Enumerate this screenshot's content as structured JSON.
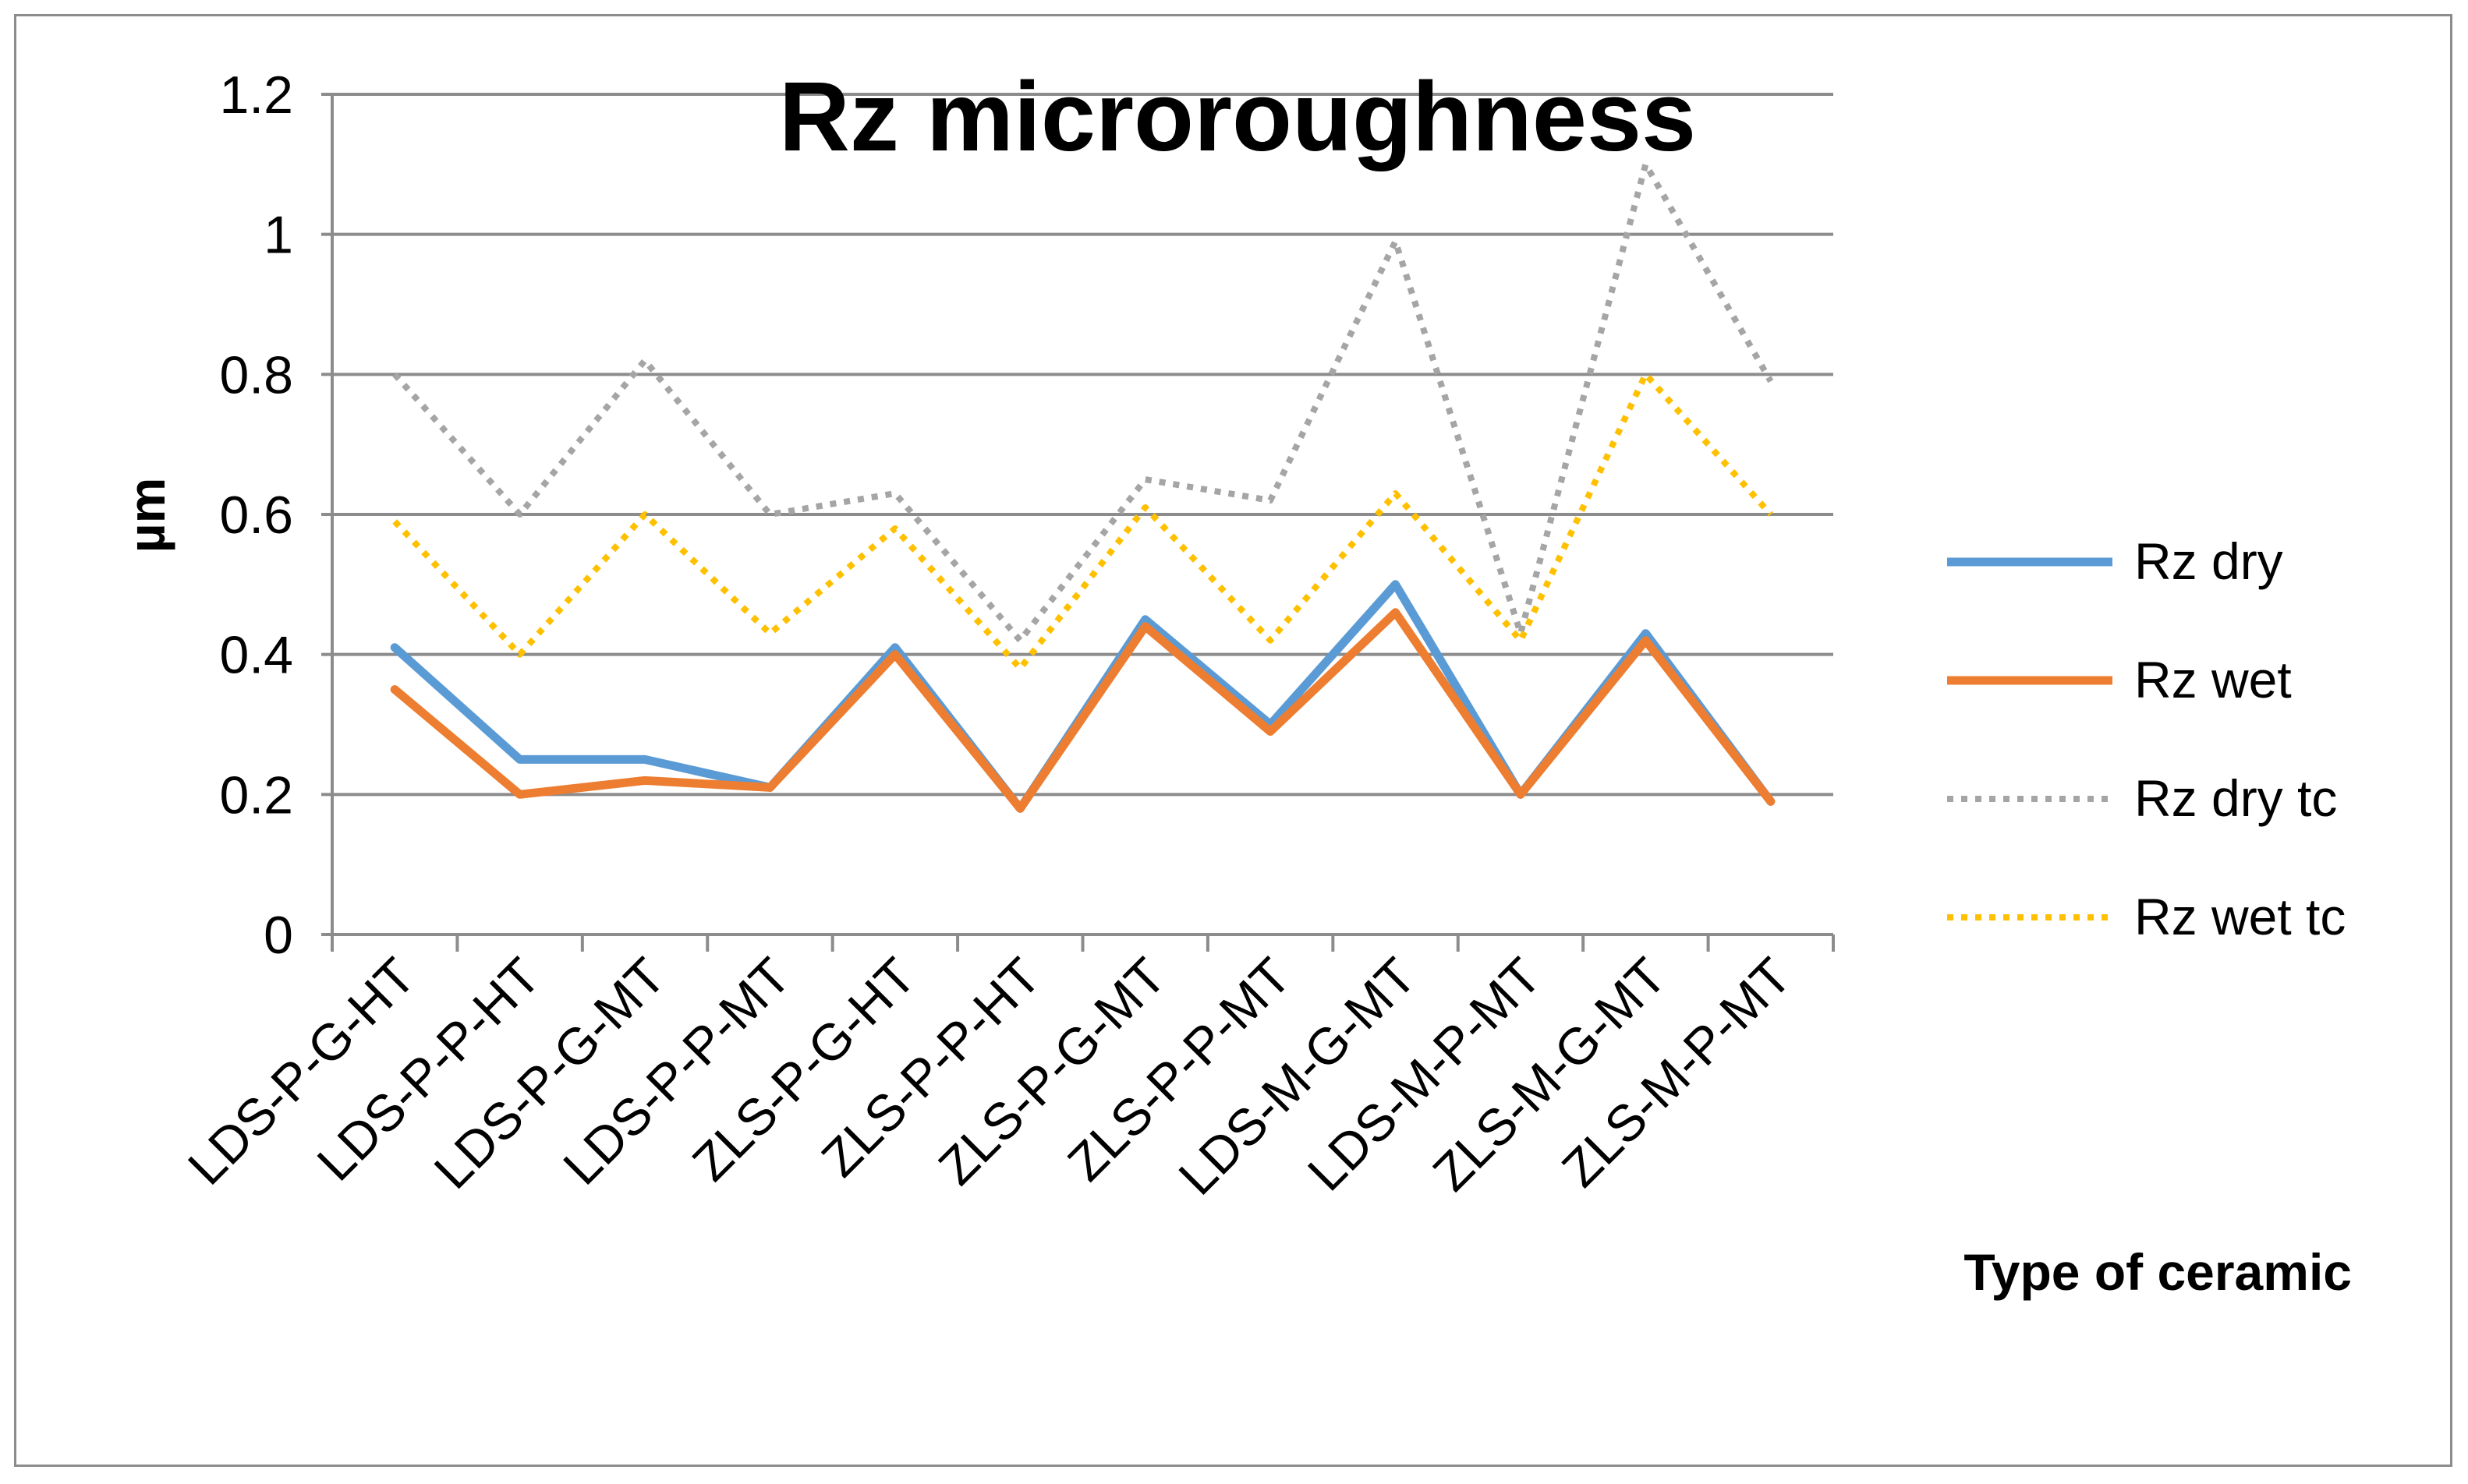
{
  "chart_data": {
    "type": "line",
    "title": "Rz microroughness",
    "xlabel": "Type of ceramic",
    "ylabel": "µm",
    "ylim": [
      0,
      1.2
    ],
    "yticks": [
      "0",
      "0.2",
      "0.4",
      "0.6",
      "0.8",
      "1",
      "1.2"
    ],
    "grid": true,
    "legend_position": "right",
    "categories": [
      "LDS-P-G-HT",
      "LDS-P-P-HT",
      "LDS-P-G-MT",
      "LDS-P-P-MT",
      "ZLS-P-G-HT",
      "ZLS-P-P-HT",
      "ZLS-P-G-MT",
      "ZLS-P-P-MT",
      "LDS-M-G-MT",
      "LDS-M-P-MT",
      "ZLS-M-G-MT",
      "ZLS-M-P-MT"
    ],
    "series": [
      {
        "name": "Rz dry",
        "color": "#5B9BD5",
        "style": "solid",
        "values": [
          0.41,
          0.25,
          0.25,
          0.21,
          0.41,
          0.18,
          0.45,
          0.3,
          0.5,
          0.2,
          0.43,
          0.19
        ]
      },
      {
        "name": "Rz wet",
        "color": "#ED7D31",
        "style": "solid",
        "values": [
          0.35,
          0.2,
          0.22,
          0.21,
          0.4,
          0.18,
          0.44,
          0.29,
          0.46,
          0.2,
          0.42,
          0.19
        ]
      },
      {
        "name": "Rz dry tc",
        "color": "#A5A5A5",
        "style": "dotted",
        "values": [
          0.8,
          0.6,
          0.82,
          0.6,
          0.63,
          0.42,
          0.65,
          0.62,
          0.99,
          0.43,
          1.1,
          0.79
        ]
      },
      {
        "name": "Rz wet tc",
        "color": "#FFC000",
        "style": "dotted",
        "values": [
          0.59,
          0.4,
          0.6,
          0.43,
          0.58,
          0.38,
          0.61,
          0.42,
          0.63,
          0.42,
          0.8,
          0.6
        ]
      }
    ]
  }
}
